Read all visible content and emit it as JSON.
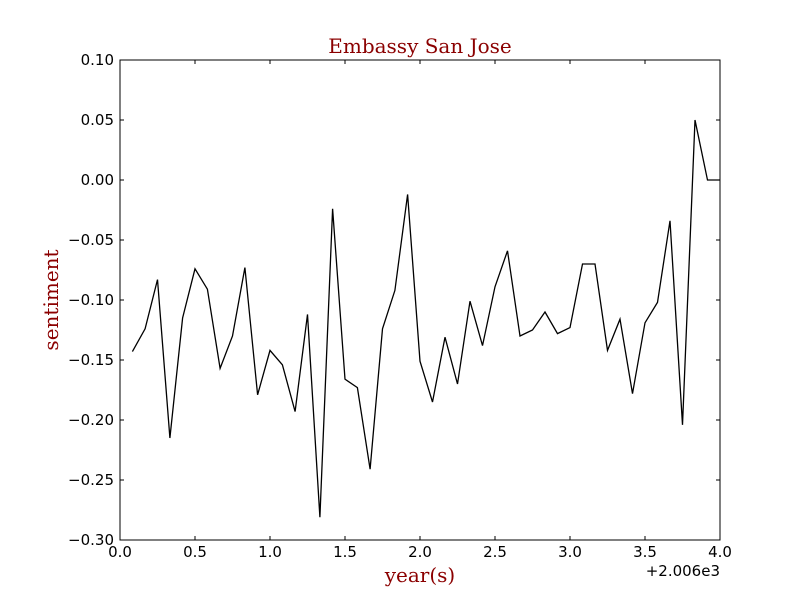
{
  "chart_data": {
    "type": "line",
    "title": "Embassy San Jose",
    "xlabel": "year(s)",
    "ylabel": "sentiment",
    "x_offset_label": "+2.006e3",
    "xlim": [
      0.0,
      4.0
    ],
    "ylim": [
      -0.3,
      0.1
    ],
    "x_tick_labels": [
      "0.0",
      "0.5",
      "1.0",
      "1.5",
      "2.0",
      "2.5",
      "3.0",
      "3.5",
      "4.0"
    ],
    "y_tick_labels": [
      "−0.30",
      "−0.25",
      "−0.20",
      "−0.15",
      "−0.10",
      "−0.05",
      "0.00",
      "0.05",
      "0.10"
    ],
    "grid": false,
    "colors": {
      "text_accent": "#8b0000",
      "line": "#000000"
    },
    "series": [
      {
        "x": [
          0.083,
          0.167,
          0.25,
          0.333,
          0.417,
          0.5,
          0.583,
          0.667,
          0.75,
          0.833,
          0.917,
          1.0,
          1.083,
          1.167,
          1.25,
          1.333,
          1.417,
          1.5,
          1.583,
          1.667,
          1.75,
          1.833,
          1.917,
          2.0,
          2.083,
          2.167,
          2.25,
          2.333,
          2.417,
          2.5,
          2.583,
          2.667,
          2.75,
          2.833,
          2.917,
          3.0,
          3.083,
          3.167,
          3.25,
          3.333,
          3.417,
          3.5,
          3.583,
          3.667,
          3.75,
          3.833,
          3.917,
          4.0
        ],
        "values": [
          -0.143,
          -0.124,
          -0.083,
          -0.215,
          -0.115,
          -0.074,
          -0.091,
          -0.157,
          -0.13,
          -0.073,
          -0.179,
          -0.142,
          -0.154,
          -0.193,
          -0.112,
          -0.281,
          -0.024,
          -0.166,
          -0.173,
          -0.241,
          -0.124,
          -0.092,
          -0.012,
          -0.151,
          -0.185,
          -0.131,
          -0.17,
          -0.101,
          -0.138,
          -0.089,
          -0.059,
          -0.13,
          -0.125,
          -0.11,
          -0.128,
          -0.123,
          -0.07,
          -0.07,
          -0.142,
          -0.116,
          -0.178,
          -0.119,
          -0.102,
          -0.034,
          -0.204,
          0.05,
          0.0,
          0.0
        ]
      }
    ]
  }
}
